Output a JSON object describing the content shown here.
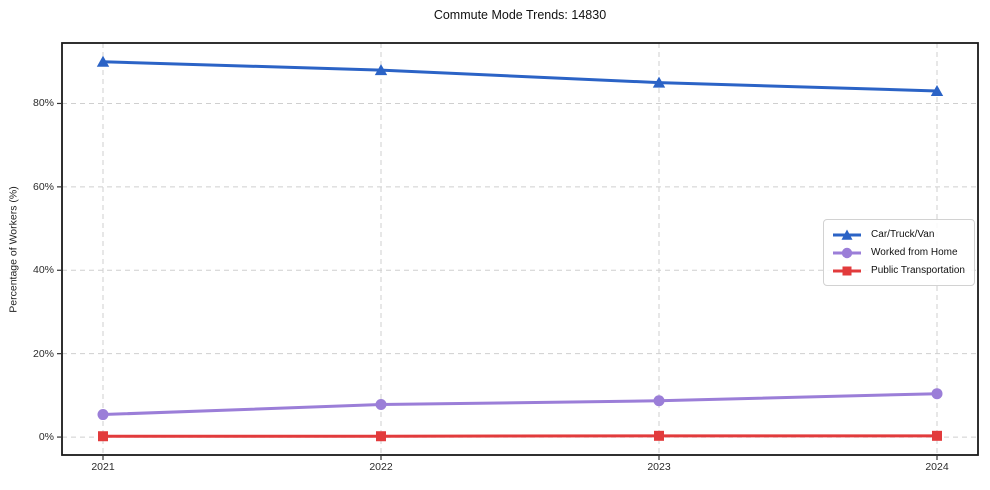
{
  "title": "Commute Mode Trends: 14830",
  "chart_data": {
    "type": "line",
    "title": "Commute Mode Trends: 14830",
    "xlabel": "",
    "ylabel": "Percentage of Workers (%)",
    "categories": [
      "2021",
      "2022",
      "2023",
      "2024"
    ],
    "series": [
      {
        "name": "Car/Truck/Van",
        "color": "#2b63c6",
        "marker": "triangle",
        "values": [
          90.0,
          88.0,
          85.0,
          83.0
        ]
      },
      {
        "name": "Worked from Home",
        "color": "#9b7ed8",
        "marker": "circle",
        "values": [
          5.4,
          7.8,
          8.7,
          10.4
        ]
      },
      {
        "name": "Public Transportation",
        "color": "#e23b3c",
        "marker": "square",
        "values": [
          0.2,
          0.2,
          0.3,
          0.3
        ]
      }
    ],
    "y_ticks": [
      {
        "value": 0,
        "label": "0%"
      },
      {
        "value": 20,
        "label": "20%"
      },
      {
        "value": 40,
        "label": "40%"
      },
      {
        "value": 60,
        "label": "60%"
      },
      {
        "value": 80,
        "label": "80%"
      }
    ],
    "ylim": [
      -4.3,
      94.5
    ],
    "grid": true,
    "grid_style": "dashed",
    "legend_position": "right-middle",
    "frame_color": "#1a1a1a",
    "grid_color": "#cfcfcf"
  }
}
